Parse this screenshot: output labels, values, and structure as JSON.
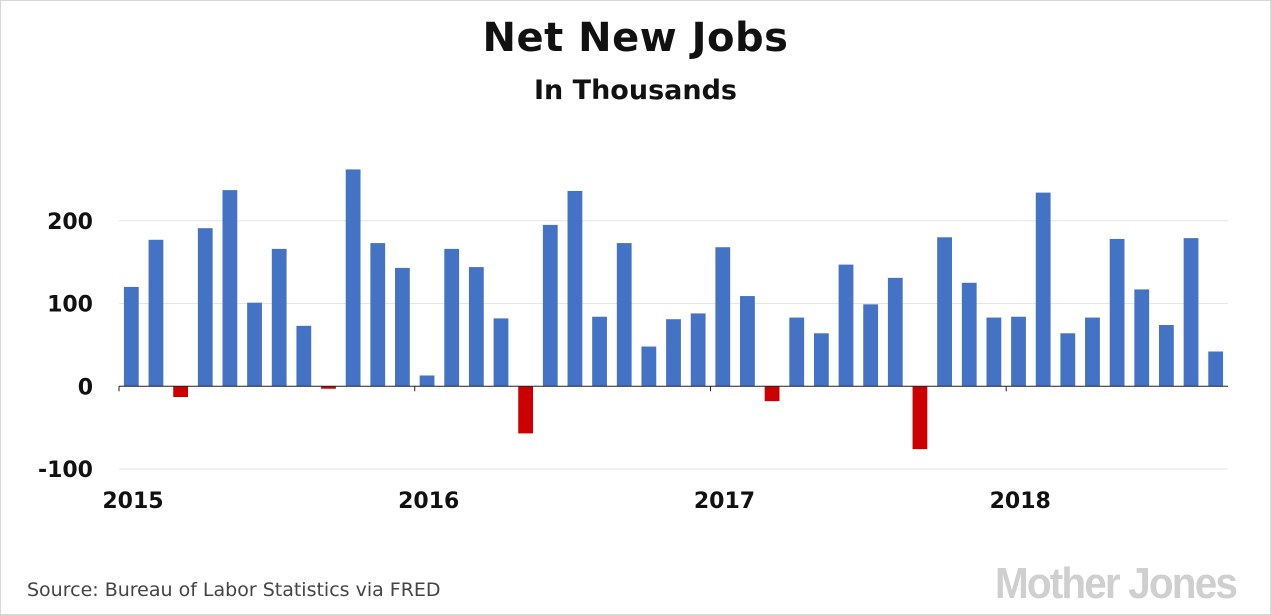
{
  "header": {
    "title": "Net New Jobs",
    "subtitle": "In Thousands"
  },
  "footer": {
    "source": "Source: Bureau of Labor Statistics via FRED",
    "logo_text": "Mother Jones"
  },
  "colors": {
    "positive": "#4472c4",
    "negative": "#cc0000",
    "grid": "#e6e6e6",
    "axis": "#222222"
  },
  "chart_data": {
    "type": "bar",
    "title": "Net New Jobs",
    "subtitle": "In Thousands",
    "xlabel": "",
    "ylabel": "",
    "ylim": [
      -100,
      300
    ],
    "yticks": [
      -100,
      0,
      100,
      200
    ],
    "ytick_labels": [
      "-100",
      "0",
      "100",
      "200"
    ],
    "xtick_labels": [
      "2015",
      "2016",
      "2017",
      "2018"
    ],
    "xtick_positions": [
      "2015-01",
      "2016-01",
      "2017-01",
      "2018-01"
    ],
    "grid": true,
    "legend": "none",
    "categories": [
      "2015-01",
      "2015-02",
      "2015-03",
      "2015-04",
      "2015-05",
      "2015-06",
      "2015-07",
      "2015-08",
      "2015-09",
      "2015-10",
      "2015-11",
      "2015-12",
      "2016-01",
      "2016-02",
      "2016-03",
      "2016-04",
      "2016-05",
      "2016-06",
      "2016-07",
      "2016-08",
      "2016-09",
      "2016-10",
      "2016-11",
      "2016-12",
      "2017-01",
      "2017-02",
      "2017-03",
      "2017-04",
      "2017-05",
      "2017-06",
      "2017-07",
      "2017-08",
      "2017-09",
      "2017-10",
      "2017-11",
      "2017-12",
      "2018-01",
      "2018-02",
      "2018-03",
      "2018-04",
      "2018-05",
      "2018-06",
      "2018-07",
      "2018-08",
      "2018-09"
    ],
    "values": [
      120,
      177,
      -13,
      191,
      237,
      101,
      166,
      73,
      -3,
      262,
      173,
      143,
      13,
      166,
      144,
      82,
      -57,
      195,
      236,
      84,
      173,
      48,
      81,
      88,
      168,
      109,
      -18,
      83,
      64,
      147,
      99,
      131,
      -76,
      180,
      125,
      83,
      84,
      234,
      64,
      83,
      178,
      117,
      74,
      179,
      42
    ]
  }
}
